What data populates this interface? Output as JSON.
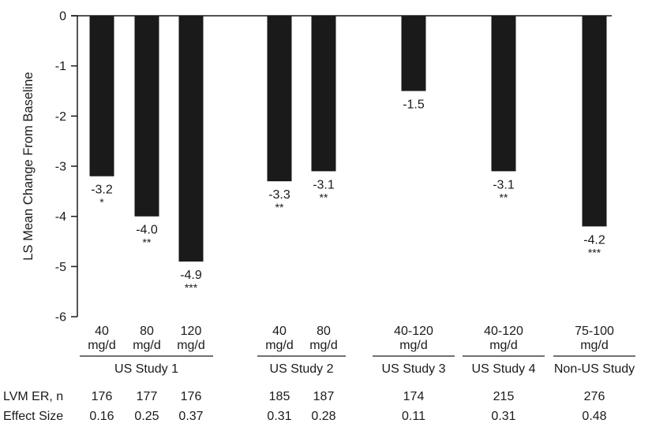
{
  "chart_data": {
    "type": "bar",
    "title": "",
    "xlabel": "",
    "ylabel": "LS Mean Change From Baseline",
    "ylim": [
      -6,
      0
    ],
    "yticks": [
      "0",
      "-1",
      "-2",
      "-3",
      "-4",
      "-5",
      "-6"
    ],
    "grid": false,
    "colors": {
      "bar": "#1a1a1a",
      "axis": "#1a1a1a",
      "text": "#1a1a1a"
    },
    "bars": [
      {
        "dose": [
          "40",
          "mg/d"
        ],
        "value": -3.2,
        "label": "-3.2",
        "sig": "*",
        "n": "176",
        "effect": "0.16"
      },
      {
        "dose": [
          "80",
          "mg/d"
        ],
        "value": -4.0,
        "label": "-4.0",
        "sig": "**",
        "n": "177",
        "effect": "0.25"
      },
      {
        "dose": [
          "120",
          "mg/d"
        ],
        "value": -4.9,
        "label": "-4.9",
        "sig": "***",
        "n": "176",
        "effect": "0.37"
      },
      {
        "dose": [
          "40",
          "mg/d"
        ],
        "value": -3.3,
        "label": "-3.3",
        "sig": "**",
        "n": "185",
        "effect": "0.31"
      },
      {
        "dose": [
          "80",
          "mg/d"
        ],
        "value": -3.1,
        "label": "-3.1",
        "sig": "**",
        "n": "187",
        "effect": "0.28"
      },
      {
        "dose": [
          "40-120",
          "mg/d"
        ],
        "value": -1.5,
        "label": "-1.5",
        "sig": "",
        "n": "174",
        "effect": "0.11"
      },
      {
        "dose": [
          "40-120",
          "mg/d"
        ],
        "value": -3.1,
        "label": "-3.1",
        "sig": "**",
        "n": "215",
        "effect": "0.31"
      },
      {
        "dose": [
          "75-100",
          "mg/d"
        ],
        "value": -4.2,
        "label": "-4.2",
        "sig": "***",
        "n": "276",
        "effect": "0.48"
      }
    ],
    "groups": [
      {
        "name": "US Study 1",
        "bars": [
          0,
          1,
          2
        ]
      },
      {
        "name": "US Study 2",
        "bars": [
          3,
          4
        ]
      },
      {
        "name": "US Study 3",
        "bars": [
          5
        ]
      },
      {
        "name": "US Study 4",
        "bars": [
          6
        ]
      },
      {
        "name": "Non-US Study",
        "bars": [
          7
        ]
      }
    ],
    "row_labels": {
      "n": "LVM ER, n",
      "effect": "Effect Size"
    }
  }
}
